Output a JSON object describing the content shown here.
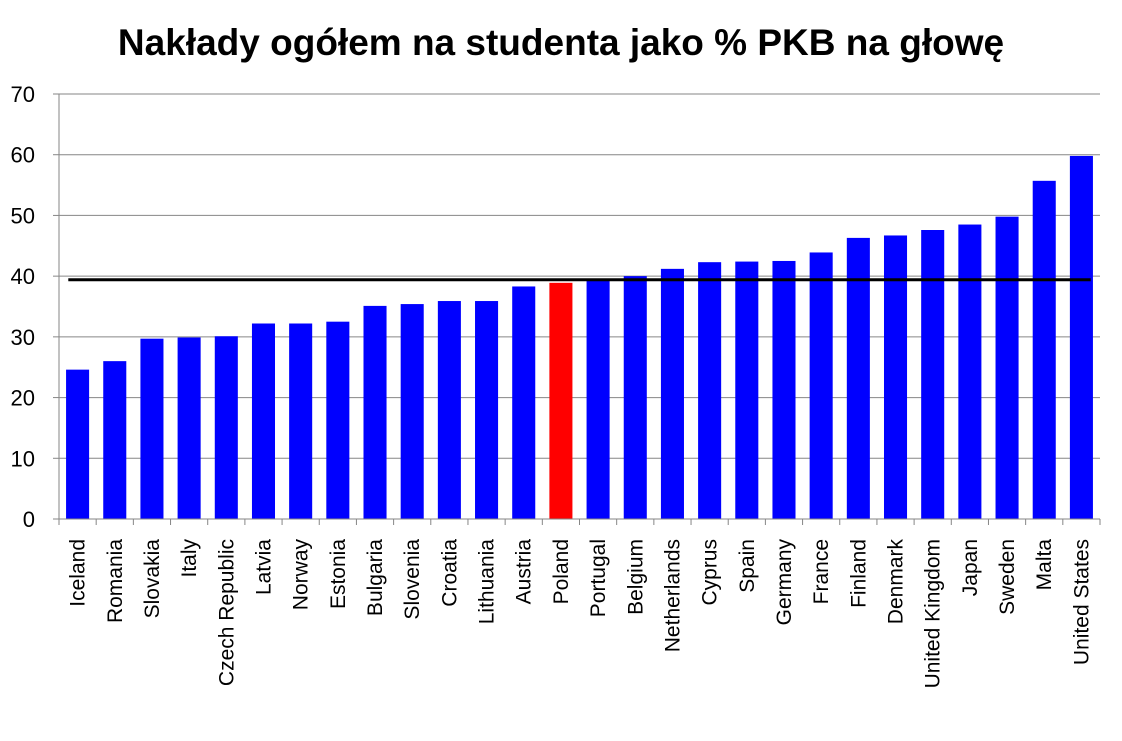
{
  "chart_data": {
    "type": "bar",
    "title": "Nakłady ogółem na studenta jako % PKB na głowę",
    "xlabel": "",
    "ylabel": "",
    "ylim": [
      0,
      70
    ],
    "yticks": [
      0,
      10,
      20,
      30,
      40,
      50,
      60,
      70
    ],
    "grid": true,
    "legend": "none",
    "categories": [
      "Iceland",
      "Romania",
      "Slovakia",
      "Italy",
      "Czech Republic",
      "Latvia",
      "Norway",
      "Estonia",
      "Bulgaria",
      "Slovenia",
      "Croatia",
      "Lithuania",
      "Austria",
      "Poland",
      "Portugal",
      "Belgium",
      "Netherlands",
      "Cyprus",
      "Spain",
      "Germany",
      "France",
      "Finland",
      "Denmark",
      "United Kingdom",
      "Japan",
      "Sweden",
      "Malta",
      "United States"
    ],
    "values": [
      24.6,
      26.0,
      29.7,
      29.9,
      30.1,
      32.2,
      32.2,
      32.5,
      35.1,
      35.4,
      35.9,
      35.9,
      38.3,
      38.9,
      39.3,
      40.0,
      41.2,
      42.3,
      42.4,
      42.5,
      43.9,
      46.3,
      46.7,
      47.6,
      48.5,
      49.8,
      55.7,
      59.8
    ],
    "reference_line": 39.4,
    "colors": {
      "bar": "#0000ff",
      "highlight": "#ff0000",
      "highlight_category": "Poland",
      "reference_line": "#000000",
      "grid": "#868686"
    }
  }
}
